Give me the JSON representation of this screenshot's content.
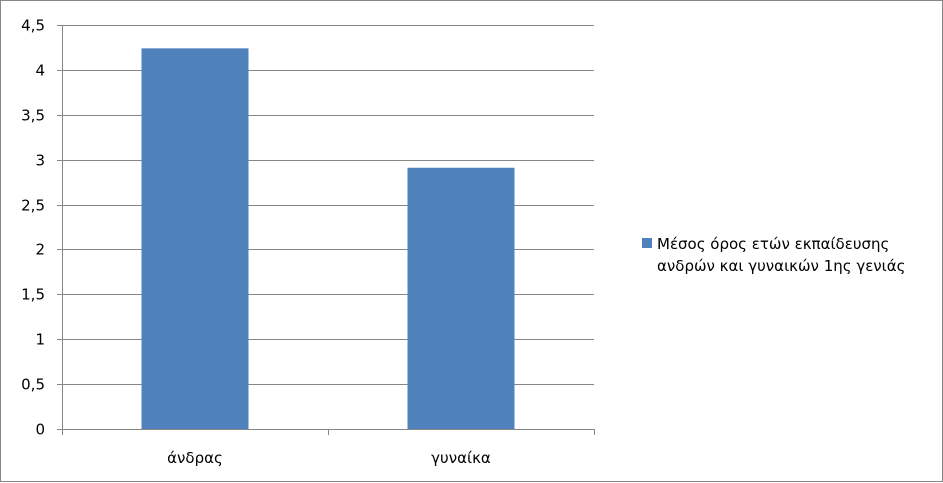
{
  "chart_data": {
    "type": "bar",
    "categories": [
      "άνδρας",
      "γυναίκα"
    ],
    "series": [
      {
        "name": "Μέσος όρος ετών εκπαίδευσης ανδρών και γυναικών 1ης γενιάς",
        "values": [
          4.24,
          2.91
        ],
        "color": "#4F81BD"
      }
    ],
    "title": "",
    "xlabel": "",
    "ylabel": "",
    "ylim": [
      0,
      4.5
    ],
    "yticks": [
      "0",
      "0,5",
      "1",
      "1,5",
      "2",
      "2,5",
      "3",
      "3,5",
      "4",
      "4,5"
    ],
    "grid": true,
    "legend_position": "right"
  }
}
